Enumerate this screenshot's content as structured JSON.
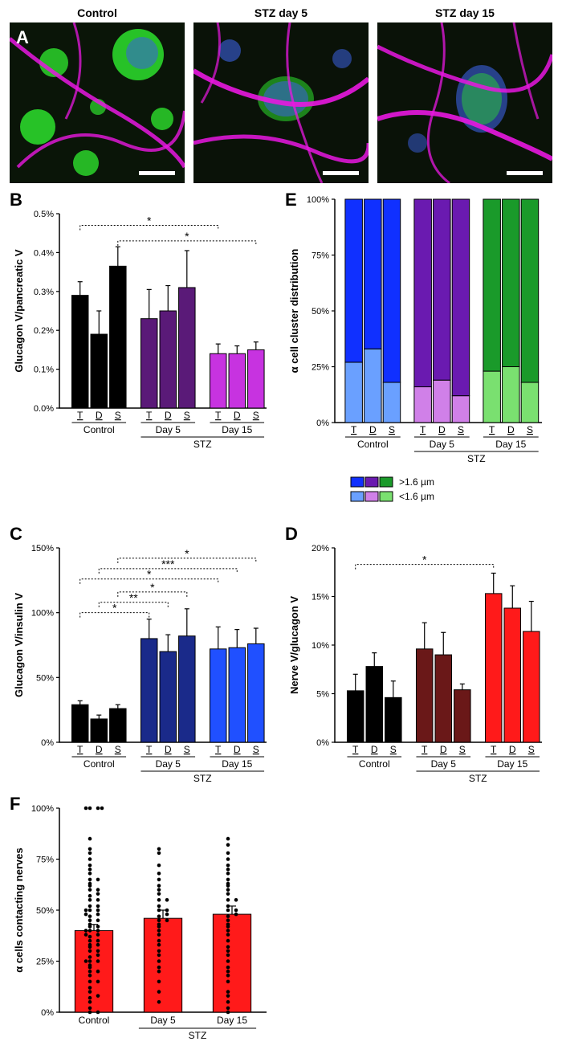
{
  "panelA": {
    "label": "A",
    "images": [
      {
        "title": "Control"
      },
      {
        "title": "STZ day 5"
      },
      {
        "title": "STZ day 15"
      }
    ],
    "colors": {
      "green": "#3ecf3a",
      "magenta": "#e818e0",
      "blue": "#2040d0",
      "bg": "#0a1208"
    }
  },
  "panelB": {
    "label": "B",
    "ylabel": "Glucagon V/pancreatic V",
    "ylim": [
      0,
      0.5
    ],
    "ytick_step": 0.1,
    "ytick_fmt": "percent1",
    "groups": [
      {
        "name": "Control",
        "color": "#000000",
        "bars": [
          {
            "x": "T",
            "v": 0.29,
            "e": 0.035
          },
          {
            "x": "D",
            "v": 0.19,
            "e": 0.06
          },
          {
            "x": "S",
            "v": 0.365,
            "e": 0.05
          }
        ]
      },
      {
        "name": "Day 5",
        "sub": "STZ",
        "color": "#5a1a78",
        "bars": [
          {
            "x": "T",
            "v": 0.23,
            "e": 0.075
          },
          {
            "x": "D",
            "v": 0.25,
            "e": 0.065
          },
          {
            "x": "S",
            "v": 0.31,
            "e": 0.095
          }
        ]
      },
      {
        "name": "Day 15",
        "sub": "STZ",
        "color": "#c733e0",
        "bars": [
          {
            "x": "T",
            "v": 0.14,
            "e": 0.025
          },
          {
            "x": "D",
            "v": 0.14,
            "e": 0.02
          },
          {
            "x": "S",
            "v": 0.15,
            "e": 0.02
          }
        ]
      }
    ],
    "sig": [
      {
        "from": [
          0,
          0
        ],
        "to": [
          2,
          0
        ],
        "label": "*",
        "y": 0.47
      },
      {
        "from": [
          0,
          2
        ],
        "to": [
          2,
          2
        ],
        "label": "*",
        "y": 0.43
      }
    ]
  },
  "panelC": {
    "label": "C",
    "ylabel": "Glucagon V/insulin V",
    "ylim": [
      0,
      150
    ],
    "ytick_step": 50,
    "ytick_fmt": "percent0",
    "groups": [
      {
        "name": "Control",
        "color": "#000000",
        "bars": [
          {
            "x": "T",
            "v": 29,
            "e": 3
          },
          {
            "x": "D",
            "v": 18,
            "e": 3
          },
          {
            "x": "S",
            "v": 26,
            "e": 3
          }
        ]
      },
      {
        "name": "Day 5",
        "sub": "STZ",
        "color": "#1a2a8a",
        "bars": [
          {
            "x": "T",
            "v": 80,
            "e": 15
          },
          {
            "x": "D",
            "v": 70,
            "e": 13
          },
          {
            "x": "S",
            "v": 82,
            "e": 21
          }
        ]
      },
      {
        "name": "Day 15",
        "sub": "STZ",
        "color": "#2050ff",
        "bars": [
          {
            "x": "T",
            "v": 72,
            "e": 17
          },
          {
            "x": "D",
            "v": 73,
            "e": 14
          },
          {
            "x": "S",
            "v": 76,
            "e": 12
          }
        ]
      }
    ],
    "sig": [
      {
        "from": [
          0,
          0
        ],
        "to": [
          1,
          0
        ],
        "label": "*",
        "y": 100
      },
      {
        "from": [
          0,
          1
        ],
        "to": [
          1,
          1
        ],
        "label": "**",
        "y": 108
      },
      {
        "from": [
          0,
          2
        ],
        "to": [
          1,
          2
        ],
        "label": "*",
        "y": 116
      },
      {
        "from": [
          0,
          0
        ],
        "to": [
          2,
          0
        ],
        "label": "*",
        "y": 126
      },
      {
        "from": [
          0,
          1
        ],
        "to": [
          2,
          1
        ],
        "label": "***",
        "y": 134
      },
      {
        "from": [
          0,
          2
        ],
        "to": [
          2,
          2
        ],
        "label": "*",
        "y": 142
      }
    ]
  },
  "panelD": {
    "label": "D",
    "ylabel": "Nerve V/glucagon V",
    "ylim": [
      0,
      20
    ],
    "ytick_step": 5,
    "ytick_fmt": "percent0",
    "groups": [
      {
        "name": "Control",
        "color": "#000000",
        "bars": [
          {
            "x": "T",
            "v": 5.3,
            "e": 1.7
          },
          {
            "x": "D",
            "v": 7.8,
            "e": 1.4
          },
          {
            "x": "S",
            "v": 4.6,
            "e": 1.7
          }
        ]
      },
      {
        "name": "Day 5",
        "sub": "STZ",
        "color": "#6a1818",
        "bars": [
          {
            "x": "T",
            "v": 9.6,
            "e": 2.7
          },
          {
            "x": "D",
            "v": 9.0,
            "e": 2.3
          },
          {
            "x": "S",
            "v": 5.4,
            "e": 0.6
          }
        ]
      },
      {
        "name": "Day 15",
        "sub": "STZ",
        "color": "#ff1a1a",
        "bars": [
          {
            "x": "T",
            "v": 15.3,
            "e": 2.1
          },
          {
            "x": "D",
            "v": 13.8,
            "e": 2.3
          },
          {
            "x": "S",
            "v": 11.4,
            "e": 3.1
          }
        ]
      }
    ],
    "sig": [
      {
        "from": [
          0,
          0
        ],
        "to": [
          2,
          0
        ],
        "label": "*",
        "y": 18.3
      }
    ]
  },
  "panelE": {
    "label": "E",
    "ylabel": "α cell cluster distribution",
    "ylim": [
      0,
      100
    ],
    "ytick_step": 25,
    "ytick_fmt": "percent0",
    "groups": [
      {
        "name": "Control",
        "dark": "#1030ff",
        "light": "#6aa0ff",
        "bars": [
          {
            "x": "T",
            "small": 27
          },
          {
            "x": "D",
            "small": 33
          },
          {
            "x": "S",
            "small": 18
          }
        ]
      },
      {
        "name": "Day 5",
        "sub": "STZ",
        "dark": "#6a1ab0",
        "light": "#d080e8",
        "bars": [
          {
            "x": "T",
            "small": 16
          },
          {
            "x": "D",
            "small": 19
          },
          {
            "x": "S",
            "small": 12
          }
        ]
      },
      {
        "name": "Day 15",
        "sub": "STZ",
        "dark": "#1a9a2a",
        "light": "#7ae070",
        "bars": [
          {
            "x": "T",
            "small": 23
          },
          {
            "x": "D",
            "small": 25
          },
          {
            "x": "S",
            "small": 18
          }
        ]
      }
    ],
    "legend": {
      "top": ">1.6 µm",
      "bottom": "<1.6 µm"
    }
  },
  "panelF": {
    "label": "F",
    "ylabel": "α cells contacting nerves",
    "ylim": [
      0,
      100
    ],
    "ytick_step": 25,
    "ytick_fmt": "percent0",
    "bar_color": "#ff1a1a",
    "groups": [
      {
        "name": "Control",
        "mean": 40,
        "se": 3,
        "points": [
          0,
          0,
          2,
          5,
          7,
          8,
          10,
          12,
          15,
          15,
          18,
          20,
          20,
          22,
          23,
          25,
          25,
          25,
          27,
          28,
          30,
          30,
          32,
          33,
          33,
          35,
          35,
          37,
          38,
          38,
          40,
          40,
          40,
          42,
          42,
          43,
          45,
          45,
          47,
          48,
          48,
          50,
          50,
          50,
          52,
          52,
          55,
          55,
          57,
          58,
          60,
          60,
          62,
          63,
          65,
          65,
          68,
          70,
          72,
          75,
          78,
          80,
          85,
          100,
          100,
          100,
          100
        ]
      },
      {
        "name": "Day 5",
        "sub": "STZ",
        "mean": 46,
        "se": 4,
        "points": [
          5,
          10,
          15,
          20,
          22,
          25,
          28,
          30,
          33,
          35,
          38,
          40,
          42,
          43,
          45,
          45,
          47,
          48,
          50,
          50,
          52,
          55,
          55,
          58,
          60,
          62,
          65,
          68,
          72,
          78,
          80
        ]
      },
      {
        "name": "Day 15",
        "sub": "STZ",
        "mean": 48,
        "se": 4,
        "points": [
          0,
          2,
          5,
          8,
          10,
          15,
          18,
          20,
          22,
          25,
          28,
          30,
          32,
          35,
          38,
          40,
          42,
          43,
          45,
          47,
          48,
          50,
          50,
          52,
          55,
          55,
          58,
          60,
          62,
          63,
          65,
          68,
          70,
          72,
          75,
          78,
          82,
          85
        ]
      }
    ]
  }
}
